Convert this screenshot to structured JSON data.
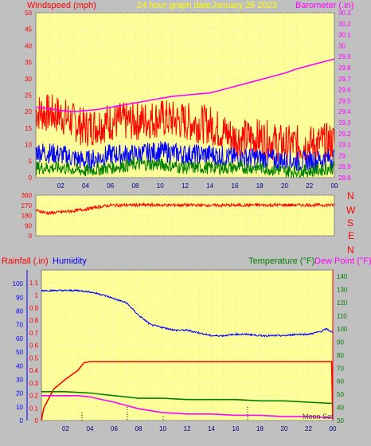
{
  "header": {
    "windspeed_label": "Windspeed (mph)",
    "title": "24 hour graph date",
    "date": "January 26 2023",
    "barometer_label": "Barometer (.in)"
  },
  "lower_header": {
    "rainfall_label": "Rainfall (.in)",
    "humidity_label": "Humidity",
    "temperature_label": "Temperature (°F)",
    "dewpoint_label": "Dew Point (°F)"
  },
  "direction_letters": [
    "N",
    "W",
    "S",
    "E",
    "N"
  ],
  "hour_ticks": [
    "02",
    "04",
    "06",
    "08",
    "10",
    "12",
    "14",
    "16",
    "18",
    "20",
    "22",
    "00"
  ],
  "footer_note": "Moon Set",
  "colors": {
    "background": "#c0c0c0",
    "plot_background": "#ffff99",
    "wind_gust": "#ff0000",
    "wind_avg": "#0000ff",
    "wind_low": "#008000",
    "barometer": "#ff00ff",
    "direction": "#ff0000",
    "rainfall": "#ff0000",
    "humidity": "#0000ff",
    "temperature": "#008000",
    "dewpoint": "#ff00ff"
  },
  "chart_data": [
    {
      "type": "line",
      "name": "wind-barometer",
      "x_unit": "hour",
      "xlim": [
        0,
        24
      ],
      "ylim": [
        0,
        50
      ],
      "y_ticks": [
        0,
        5,
        10,
        15,
        20,
        25,
        30,
        35,
        40,
        45,
        50
      ],
      "y2lim": [
        28.8,
        30.3
      ],
      "y2_ticks": [
        "28.8",
        "28.9",
        "29",
        "29.1",
        "29.2",
        "29.3",
        "29.4",
        "29.5",
        "29.6",
        "29.7",
        "29.8",
        "29.9",
        "30",
        "30.1",
        "30.2",
        "30.3"
      ],
      "series": [
        {
          "name": "Windspeed",
          "axis": "left",
          "x": [
            0,
            2,
            4,
            6,
            8,
            10,
            12,
            14,
            16,
            18,
            20,
            22,
            24
          ],
          "values": [
            20,
            19,
            15,
            17,
            17,
            18,
            17,
            16,
            12,
            12,
            10,
            10,
            11
          ]
        },
        {
          "name": "Windspeed",
          "axis": "left",
          "x": [
            0,
            2,
            4,
            6,
            8,
            10,
            12,
            14,
            16,
            18,
            20,
            22,
            24
          ],
          "values": [
            8,
            7,
            5,
            7,
            7,
            8,
            7,
            7,
            6,
            6,
            5,
            5,
            6
          ]
        },
        {
          "name": "Windspeed",
          "axis": "left",
          "x": [
            0,
            2,
            4,
            6,
            8,
            10,
            12,
            14,
            16,
            18,
            20,
            22,
            24
          ],
          "values": [
            3,
            3,
            2,
            3,
            4,
            4,
            3,
            3,
            3,
            3,
            2,
            2,
            3
          ]
        },
        {
          "name": "Barometer",
          "axis": "right",
          "x": [
            0,
            1,
            2,
            3,
            4,
            5,
            6,
            7,
            8,
            9,
            10,
            11,
            12,
            13,
            14,
            15,
            16,
            17,
            18,
            19,
            20,
            21,
            22,
            23,
            24
          ],
          "values": [
            29.44,
            29.43,
            29.41,
            29.4,
            29.41,
            29.42,
            29.44,
            29.46,
            29.48,
            29.5,
            29.52,
            29.54,
            29.55,
            29.56,
            29.57,
            29.6,
            29.63,
            29.66,
            29.69,
            29.72,
            29.75,
            29.79,
            29.82,
            29.85,
            29.88
          ]
        }
      ]
    },
    {
      "type": "line",
      "name": "wind-direction",
      "x_unit": "hour",
      "xlim": [
        0,
        24
      ],
      "ylim": [
        0,
        360
      ],
      "y_ticks": [
        0,
        90,
        180,
        270,
        360
      ],
      "series": [
        {
          "name": "Direction",
          "x": [
            0,
            1,
            2,
            3,
            4,
            5,
            6,
            8,
            10,
            12,
            14,
            16,
            18,
            20,
            22,
            24
          ],
          "values": [
            225,
            200,
            210,
            220,
            235,
            255,
            270,
            272,
            272,
            272,
            270,
            270,
            272,
            272,
            272,
            272
          ]
        }
      ]
    },
    {
      "type": "line",
      "name": "rain-humidity-temperature",
      "x_unit": "hour",
      "xlim": [
        0,
        24
      ],
      "ylim": [
        0,
        1.2
      ],
      "y_ticks": [
        "0",
        "0.1",
        "0.2",
        "0.3",
        "0.4",
        "0.5",
        "0.6",
        "0.7",
        "0.8",
        "0.9",
        "1",
        "1.1"
      ],
      "y_left_outer_ticks": [
        0,
        10,
        20,
        30,
        40,
        50,
        60,
        70,
        80,
        90,
        100
      ],
      "y2lim": [
        30,
        145
      ],
      "y2_ticks": [
        30,
        40,
        50,
        60,
        70,
        80,
        90,
        100,
        110,
        120,
        130,
        140
      ],
      "series": [
        {
          "name": "Rainfall",
          "axis": "left",
          "x": [
            0,
            0.2,
            1,
            2,
            3,
            3.5,
            4,
            8,
            12,
            16,
            20,
            23.9,
            24
          ],
          "values": [
            0,
            0.1,
            0.25,
            0.33,
            0.4,
            0.46,
            0.47,
            0.47,
            0.47,
            0.47,
            0.47,
            0.47,
            0.01
          ]
        },
        {
          "name": "Humidity",
          "axis": "outer",
          "x": [
            0,
            1,
            2,
            3,
            4,
            5,
            6,
            7,
            8,
            9,
            10,
            11,
            12,
            13,
            14,
            15,
            16,
            17,
            18,
            19,
            20,
            21,
            22,
            23,
            23.5,
            24
          ],
          "values": [
            95,
            95,
            95,
            95,
            94,
            92,
            89,
            86,
            77,
            70,
            68,
            66,
            66,
            64,
            62,
            62,
            63,
            63,
            62,
            62,
            62,
            63,
            63,
            65,
            67,
            64
          ]
        },
        {
          "name": "Temperature",
          "axis": "right",
          "x": [
            0,
            2,
            4,
            6,
            8,
            10,
            12,
            14,
            16,
            18,
            20,
            22,
            24
          ],
          "values": [
            52,
            52,
            51,
            49,
            47,
            47,
            46,
            46,
            46,
            45,
            45,
            44,
            43
          ]
        },
        {
          "name": "Dew Point",
          "axis": "right",
          "x": [
            0,
            2,
            3,
            4,
            6,
            8,
            10,
            12,
            14,
            16,
            18,
            20,
            22,
            24
          ],
          "values": [
            49,
            49,
            49,
            48,
            44,
            39,
            36,
            35,
            35,
            34,
            34,
            33,
            33,
            32
          ]
        }
      ]
    }
  ]
}
